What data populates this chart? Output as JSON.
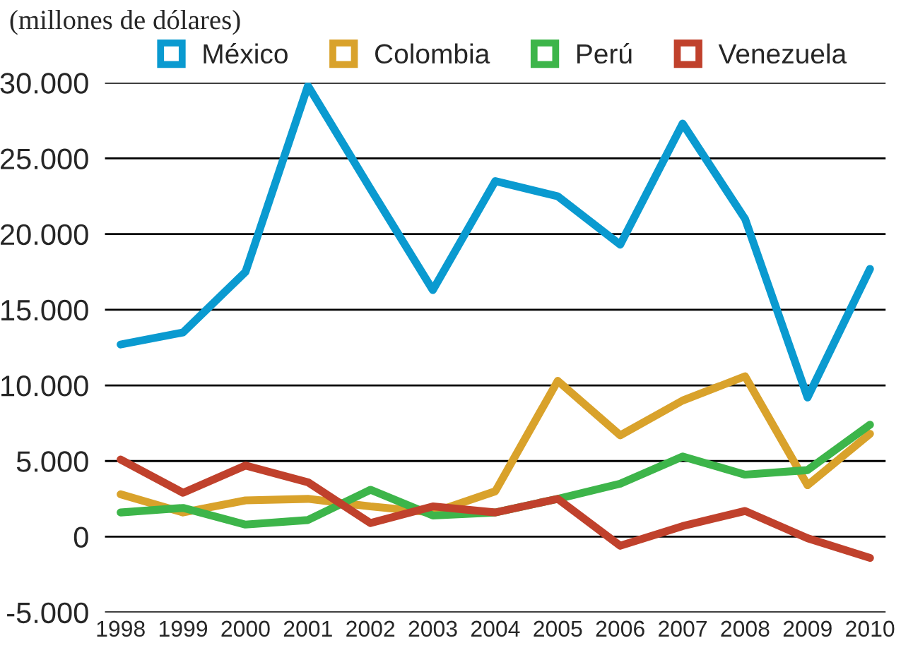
{
  "chart_data": {
    "type": "line",
    "title": "(millones de dólares)",
    "x": [
      1998,
      1999,
      2000,
      2001,
      2002,
      2003,
      2004,
      2005,
      2006,
      2007,
      2008,
      2009,
      2010
    ],
    "xlim": [
      1997.75,
      2010.25
    ],
    "xticks": [
      1998,
      1999,
      2000,
      2001,
      2002,
      2003,
      2004,
      2005,
      2006,
      2007,
      2008,
      2009,
      2010
    ],
    "ylim": [
      -5000,
      30000
    ],
    "yticks": [
      {
        "value": -5000,
        "label": "-5.000"
      },
      0,
      {
        "value": 5000,
        "label": "5.000"
      },
      {
        "value": 10000,
        "label": "10.000"
      },
      {
        "value": 15000,
        "label": "15.000"
      },
      {
        "value": 20000,
        "label": "20.000"
      },
      {
        "value": 25000,
        "label": "25.000"
      },
      {
        "value": 30000,
        "label": "30.000"
      }
    ],
    "grid": "y",
    "legend": "top",
    "line_style": "solid",
    "marker": "none",
    "series": [
      {
        "name": "México",
        "color": "#0a9ad0",
        "values": [
          12700,
          13500,
          17500,
          29800,
          23000,
          16300,
          23500,
          22500,
          19300,
          27300,
          21000,
          9200,
          17700
        ]
      },
      {
        "name": "Colombia",
        "color": "#d9a22b",
        "values": [
          2800,
          1600,
          2400,
          2500,
          2000,
          1600,
          3000,
          10300,
          6700,
          9000,
          10600,
          3400,
          6800
        ]
      },
      {
        "name": "Perú",
        "color": "#3db54a",
        "values": [
          1600,
          1900,
          800,
          1100,
          3100,
          1400,
          1600,
          2500,
          3500,
          5300,
          4100,
          4400,
          7400
        ]
      },
      {
        "name": "Venezuela",
        "color": "#c0412c",
        "values": [
          5100,
          2900,
          4700,
          3600,
          900,
          2000,
          1600,
          2500,
          -600,
          700,
          1700,
          -100,
          -1400
        ]
      }
    ]
  }
}
